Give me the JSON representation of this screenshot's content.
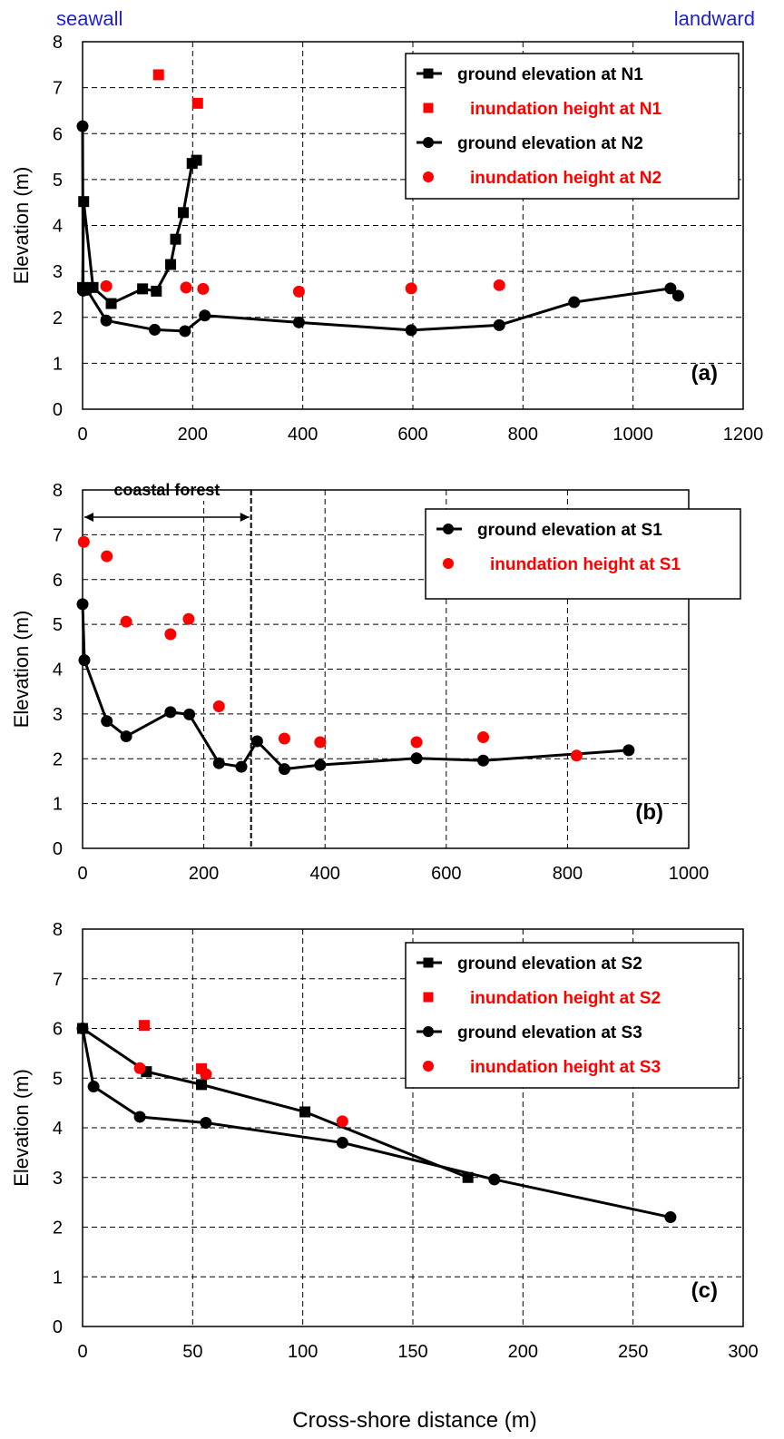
{
  "header": {
    "left_label": "seawall",
    "right_label": "landward"
  },
  "xlabel": "Cross-shore distance  (m)",
  "chart_data": [
    {
      "type": "line",
      "panel_label": "(a)",
      "ylabel": "Elevation (m)",
      "xlim": [
        0,
        1200
      ],
      "ylim": [
        0,
        8
      ],
      "xticks": [
        "0",
        "200",
        "400",
        "600",
        "800",
        "1000",
        "1200"
      ],
      "yticks": [
        "0",
        "1",
        "2",
        "3",
        "4",
        "5",
        "6",
        "7",
        "8"
      ],
      "grid": true,
      "legend_position": "top-right",
      "series": [
        {
          "name": "ground elevation at N1",
          "kind": "line",
          "marker": "square",
          "color": "#000000",
          "x": [
            0,
            2,
            19,
            52,
            109,
            134,
            160,
            169,
            183,
            199,
            207
          ],
          "y": [
            2.65,
            4.52,
            2.65,
            2.3,
            2.62,
            2.57,
            3.15,
            3.7,
            4.28,
            5.35,
            5.42
          ]
        },
        {
          "name": "inundation height at N1",
          "kind": "points",
          "marker": "square",
          "color": "#ff0000",
          "x": [
            138,
            209
          ],
          "y": [
            7.28,
            6.66
          ]
        },
        {
          "name": "ground elevation at N2",
          "kind": "line",
          "marker": "circle",
          "color": "#000000",
          "x": [
            0,
            1,
            8,
            43,
            131,
            186,
            222,
            393,
            597,
            757,
            893,
            1068,
            1082
          ],
          "y": [
            6.16,
            2.58,
            2.6,
            1.93,
            1.73,
            1.7,
            2.04,
            1.89,
            1.72,
            1.83,
            2.33,
            2.63,
            2.47
          ]
        },
        {
          "name": "inundation height at N2",
          "kind": "points",
          "marker": "circle",
          "color": "#ff0000",
          "x": [
            43,
            188,
            219,
            393,
            597,
            757
          ],
          "y": [
            2.68,
            2.65,
            2.62,
            2.56,
            2.63,
            2.7
          ]
        }
      ]
    },
    {
      "type": "line",
      "panel_label": "(b)",
      "ylabel": "Elevation (m)",
      "xlim": [
        0,
        1000
      ],
      "ylim": [
        0,
        8
      ],
      "xticks": [
        "0",
        "200",
        "400",
        "600",
        "800",
        "1000"
      ],
      "yticks": [
        "0",
        "1",
        "2",
        "3",
        "4",
        "5",
        "6",
        "7",
        "8"
      ],
      "grid": true,
      "legend_position": "top-right",
      "annotation": {
        "text": "coastal forest",
        "x_start": 0,
        "x_end": 278
      },
      "series": [
        {
          "name": "ground elevation at S1",
          "kind": "line",
          "marker": "circle",
          "color": "#000000",
          "x": [
            0,
            3,
            40,
            72,
            145,
            176,
            225,
            262,
            288,
            333,
            392,
            551,
            661,
            901
          ],
          "y": [
            5.45,
            4.2,
            2.84,
            2.5,
            3.04,
            2.99,
            1.9,
            1.82,
            2.39,
            1.77,
            1.86,
            2.01,
            1.96,
            2.19
          ]
        },
        {
          "name": "inundation height at S1",
          "kind": "points",
          "marker": "circle",
          "color": "#ff0000",
          "x": [
            2,
            40,
            72,
            145,
            175,
            225,
            333,
            392,
            551,
            661,
            815
          ],
          "y": [
            6.84,
            6.52,
            5.06,
            4.78,
            5.12,
            3.17,
            2.45,
            2.37,
            2.37,
            2.48,
            2.07
          ]
        }
      ]
    },
    {
      "type": "line",
      "panel_label": "(c)",
      "ylabel": "Elevation (m)",
      "xlim": [
        0,
        300
      ],
      "ylim": [
        0,
        8
      ],
      "xticks": [
        "0",
        "50",
        "100",
        "150",
        "200",
        "250",
        "300"
      ],
      "yticks": [
        "0",
        "1",
        "2",
        "3",
        "4",
        "5",
        "6",
        "7",
        "8"
      ],
      "grid": true,
      "legend_position": "top-right",
      "series": [
        {
          "name": "ground elevation at S2",
          "kind": "line",
          "marker": "square",
          "color": "#000000",
          "x": [
            0,
            29,
            54,
            101,
            175
          ],
          "y": [
            6.0,
            5.13,
            4.87,
            4.32,
            3.0
          ]
        },
        {
          "name": "inundation height at S2",
          "kind": "points",
          "marker": "square",
          "color": "#ff0000",
          "x": [
            28,
            54
          ],
          "y": [
            6.06,
            5.19
          ]
        },
        {
          "name": "ground elevation at S3",
          "kind": "line",
          "marker": "circle",
          "color": "#000000",
          "x": [
            0,
            5,
            26,
            56,
            118,
            187,
            267
          ],
          "y": [
            6.0,
            4.83,
            4.22,
            4.1,
            3.7,
            2.96,
            2.2
          ]
        },
        {
          "name": "inundation height at S3",
          "kind": "points",
          "marker": "circle",
          "color": "#ff0000",
          "x": [
            26,
            56,
            118
          ],
          "y": [
            5.2,
            5.08,
            4.13
          ]
        }
      ]
    }
  ]
}
